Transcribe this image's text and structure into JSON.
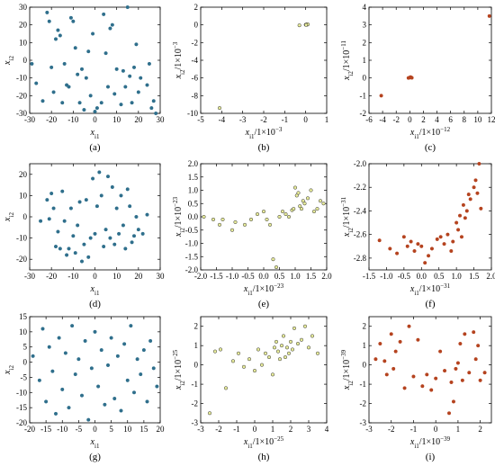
{
  "colors": {
    "blue_marker": "#2f6f8c",
    "yellow_marker": "#e8ec9a",
    "red_marker": "#b5431f",
    "axis": "#000000"
  },
  "chart_data": [
    {
      "id": "a",
      "caption": "(a)",
      "type": "scatter",
      "xlabel": "x_i1",
      "ylabel": "x_i2",
      "xlim": [
        -30,
        30
      ],
      "ylim": [
        -30,
        30
      ],
      "xticks": [
        "-30",
        "-20",
        "-10",
        "0",
        "10",
        "20",
        "30"
      ],
      "yticks": [
        "-30",
        "-20",
        "-10",
        "0",
        "10",
        "20",
        "30"
      ],
      "marker": "blue",
      "points": [
        [
          -29,
          -2
        ],
        [
          -27,
          -13
        ],
        [
          -24,
          -23
        ],
        [
          -22,
          27
        ],
        [
          -21,
          22
        ],
        [
          -20,
          -4
        ],
        [
          -19,
          -18
        ],
        [
          -18,
          12
        ],
        [
          -17,
          17
        ],
        [
          -16,
          14
        ],
        [
          -15,
          -24
        ],
        [
          -14,
          -2
        ],
        [
          -13,
          -14
        ],
        [
          -12,
          -15
        ],
        [
          -11,
          24
        ],
        [
          -10,
          22
        ],
        [
          -9,
          7
        ],
        [
          -8,
          -8
        ],
        [
          -7,
          -24
        ],
        [
          -6,
          -5
        ],
        [
          -5,
          -28
        ],
        [
          -4,
          -10
        ],
        [
          -3,
          5
        ],
        [
          -2,
          -20
        ],
        [
          -1,
          15
        ],
        [
          0,
          -29
        ],
        [
          1,
          -27
        ],
        [
          3,
          -24
        ],
        [
          4,
          26
        ],
        [
          5,
          4
        ],
        [
          6,
          -15
        ],
        [
          7,
          18
        ],
        [
          8,
          20
        ],
        [
          9,
          -19
        ],
        [
          10,
          -5
        ],
        [
          12,
          -25
        ],
        [
          13,
          -6
        ],
        [
          14,
          -15
        ],
        [
          15,
          30
        ],
        [
          16,
          -9
        ],
        [
          17,
          -24
        ],
        [
          18,
          -4
        ],
        [
          19,
          9
        ],
        [
          20,
          -18
        ],
        [
          21,
          -10
        ],
        [
          24,
          -14
        ],
        [
          25,
          -2
        ],
        [
          26,
          -27
        ],
        [
          27,
          -23
        ],
        [
          28,
          -30
        ]
      ]
    },
    {
      "id": "b",
      "caption": "(b)",
      "type": "scatter",
      "xlabel": "x_i1/1×10^-3",
      "ylabel": "x_i2/1×10^-3",
      "xlim": [
        -5,
        1
      ],
      "ylim": [
        -10,
        2
      ],
      "xticks": [
        "-5",
        "-4",
        "-3",
        "-2",
        "-1",
        "0",
        "1"
      ],
      "yticks": [
        "-10",
        "-8",
        "-6",
        "-4",
        "-2",
        "0",
        "2"
      ],
      "marker": "yellow",
      "points": [
        [
          -4.1,
          -9.4
        ],
        [
          -0.3,
          -0.05
        ],
        [
          0.0,
          0.02
        ],
        [
          0.03,
          0.04
        ],
        [
          0.06,
          0.05
        ],
        [
          0.08,
          0.03
        ],
        [
          0.1,
          0.06
        ],
        [
          0.02,
          0.0
        ]
      ]
    },
    {
      "id": "c",
      "caption": "(c)",
      "type": "scatter",
      "xlabel": "x_i1/1×10^-12",
      "ylabel": "x_i2/1×10^-11",
      "xlim": [
        -6,
        12
      ],
      "ylim": [
        -2,
        4
      ],
      "xticks": [
        "-6",
        "-4",
        "-2",
        "0",
        "2",
        "4",
        "6",
        "8",
        "10",
        "12"
      ],
      "yticks": [
        "-2",
        "-1",
        "0",
        "1",
        "2",
        "3",
        "4"
      ],
      "marker": "red",
      "points": [
        [
          -4.2,
          -1.0
        ],
        [
          -0.2,
          0.0
        ],
        [
          0.0,
          0.02
        ],
        [
          0.1,
          0.05
        ],
        [
          0.2,
          0.03
        ],
        [
          0.3,
          0.01
        ],
        [
          11.7,
          3.5
        ]
      ]
    },
    {
      "id": "d",
      "caption": "(d)",
      "type": "scatter",
      "xlabel": "x_i1",
      "ylabel": "x_i2",
      "xlim": [
        -30,
        30
      ],
      "ylim": [
        -25,
        25
      ],
      "xticks": [
        "-30",
        "-20",
        "-10",
        "0",
        "10",
        "20",
        "30"
      ],
      "yticks": [
        "-20",
        "-10",
        "0",
        "10",
        "20"
      ],
      "marker": "blue",
      "points": [
        [
          -25,
          -2
        ],
        [
          -22,
          8
        ],
        [
          -21,
          -1
        ],
        [
          -20,
          11
        ],
        [
          -19,
          4
        ],
        [
          -18,
          -14
        ],
        [
          -17,
          -7
        ],
        [
          -16,
          -15
        ],
        [
          -15,
          12
        ],
        [
          -14,
          -2
        ],
        [
          -13,
          -18
        ],
        [
          -12,
          -15
        ],
        [
          -11,
          4
        ],
        [
          -10,
          -9
        ],
        [
          -9,
          -17
        ],
        [
          -8,
          -4
        ],
        [
          -7,
          7
        ],
        [
          -6,
          -21
        ],
        [
          -5,
          -13
        ],
        [
          -4,
          8
        ],
        [
          -3,
          -19
        ],
        [
          -2,
          -10
        ],
        [
          -1,
          18
        ],
        [
          0,
          -8
        ],
        [
          1,
          5
        ],
        [
          2,
          21
        ],
        [
          3,
          10
        ],
        [
          4,
          -14
        ],
        [
          5,
          -6
        ],
        [
          6,
          19
        ],
        [
          7,
          -10
        ],
        [
          8,
          14
        ],
        [
          9,
          -13
        ],
        [
          10,
          4
        ],
        [
          11,
          -8
        ],
        [
          12,
          10
        ],
        [
          13,
          -4
        ],
        [
          14,
          -15
        ],
        [
          15,
          13
        ],
        [
          16,
          5
        ],
        [
          17,
          -12
        ],
        [
          18,
          -9
        ],
        [
          19,
          0
        ],
        [
          20,
          -6
        ],
        [
          22,
          -8
        ],
        [
          24,
          1
        ]
      ]
    },
    {
      "id": "e",
      "caption": "(e)",
      "type": "scatter",
      "xlabel": "x_i1/1×10^-23",
      "ylabel": "x_i2/1×10^-23",
      "xlim": [
        -2.0,
        2.0
      ],
      "ylim": [
        -2.0,
        2.0
      ],
      "xticks": [
        "-2.0",
        "-1.5",
        "-1.0",
        "-0.5",
        "0.0",
        "0.5",
        "1.0",
        "1.5",
        "2.0"
      ],
      "yticks": [
        "-2.0",
        "-1.5",
        "-1.0",
        "-0.5",
        "0.0",
        "0.5",
        "1.0",
        "1.5",
        "2.0"
      ],
      "marker": "yellow",
      "points": [
        [
          -1.9,
          0.0
        ],
        [
          -1.6,
          -0.1
        ],
        [
          -1.4,
          -0.3
        ],
        [
          -1.3,
          -0.1
        ],
        [
          -1.0,
          -0.5
        ],
        [
          -0.9,
          -0.2
        ],
        [
          -0.6,
          -0.3
        ],
        [
          -0.4,
          -0.1
        ],
        [
          -0.2,
          0.1
        ],
        [
          0.0,
          0.2
        ],
        [
          0.1,
          -0.1
        ],
        [
          0.2,
          -0.3
        ],
        [
          0.3,
          -1.6
        ],
        [
          0.4,
          -1.9
        ],
        [
          0.5,
          0.0
        ],
        [
          0.6,
          0.2
        ],
        [
          0.7,
          0.1
        ],
        [
          0.8,
          0.0
        ],
        [
          0.9,
          0.25
        ],
        [
          0.95,
          0.3
        ],
        [
          1.0,
          1.1
        ],
        [
          1.05,
          0.8
        ],
        [
          1.1,
          0.9
        ],
        [
          1.15,
          0.4
        ],
        [
          1.2,
          0.3
        ],
        [
          1.25,
          0.6
        ],
        [
          1.3,
          0.5
        ],
        [
          1.4,
          0.7
        ],
        [
          1.5,
          1.0
        ],
        [
          1.6,
          0.2
        ],
        [
          1.7,
          0.3
        ],
        [
          1.8,
          0.6
        ],
        [
          1.9,
          0.5
        ]
      ]
    },
    {
      "id": "f",
      "caption": "(f)",
      "type": "scatter",
      "xlabel": "x_i1/1×10^-31",
      "ylabel": "x_i2/1×10^-31",
      "xlim": [
        -1.5,
        2.0
      ],
      "ylim": [
        -2.9,
        -2.0
      ],
      "xticks": [
        "-1.5",
        "-1.0",
        "-0.5",
        "0.0",
        "0.5",
        "1.0",
        "1.5",
        "2.0"
      ],
      "yticks": [
        "-2.8",
        "-2.6",
        "-2.4",
        "-2.2",
        "-2.0"
      ],
      "marker": "red",
      "points": [
        [
          -1.2,
          -2.65
        ],
        [
          -0.9,
          -2.72
        ],
        [
          -0.7,
          -2.76
        ],
        [
          -0.5,
          -2.62
        ],
        [
          -0.4,
          -2.7
        ],
        [
          -0.3,
          -2.66
        ],
        [
          -0.2,
          -2.74
        ],
        [
          -0.1,
          -2.68
        ],
        [
          0.0,
          -2.7
        ],
        [
          0.1,
          -2.84
        ],
        [
          0.2,
          -2.78
        ],
        [
          0.3,
          -2.72
        ],
        [
          0.45,
          -2.64
        ],
        [
          0.55,
          -2.62
        ],
        [
          0.65,
          -2.68
        ],
        [
          0.75,
          -2.6
        ],
        [
          0.85,
          -2.74
        ],
        [
          0.9,
          -2.66
        ],
        [
          1.0,
          -2.5
        ],
        [
          1.05,
          -2.56
        ],
        [
          1.1,
          -2.44
        ],
        [
          1.15,
          -2.62
        ],
        [
          1.2,
          -2.35
        ],
        [
          1.25,
          -2.46
        ],
        [
          1.3,
          -2.4
        ],
        [
          1.35,
          -2.26
        ],
        [
          1.4,
          -2.3
        ],
        [
          1.5,
          -2.2
        ],
        [
          1.55,
          -2.14
        ],
        [
          1.6,
          -2.25
        ],
        [
          1.65,
          -2.0
        ],
        [
          1.7,
          -2.38
        ]
      ]
    },
    {
      "id": "g",
      "caption": "(g)",
      "type": "scatter",
      "xlabel": "x_i1",
      "ylabel": "x_i2",
      "xlim": [
        -20,
        20
      ],
      "ylim": [
        -20,
        15
      ],
      "xticks": [
        "-20",
        "-15",
        "-10",
        "-5",
        "0",
        "5",
        "10",
        "15",
        "20"
      ],
      "yticks": [
        "-20",
        "-15",
        "-10",
        "-5",
        "0",
        "5",
        "10",
        "15"
      ],
      "marker": "blue",
      "points": [
        [
          -19,
          2
        ],
        [
          -17,
          -6
        ],
        [
          -16,
          11
        ],
        [
          -15,
          -13
        ],
        [
          -14,
          5
        ],
        [
          -13,
          -3
        ],
        [
          -12,
          -17
        ],
        [
          -11,
          8
        ],
        [
          -10,
          -9
        ],
        [
          -9,
          3
        ],
        [
          -8,
          -15
        ],
        [
          -7,
          12
        ],
        [
          -6,
          -4
        ],
        [
          -5,
          1
        ],
        [
          -4,
          -11
        ],
        [
          -3,
          7
        ],
        [
          -2,
          -19
        ],
        [
          -1,
          -2
        ],
        [
          0,
          10
        ],
        [
          1,
          -8
        ],
        [
          2,
          4
        ],
        [
          3,
          -14
        ],
        [
          4,
          -1
        ],
        [
          5,
          8
        ],
        [
          6,
          -12
        ],
        [
          7,
          2
        ],
        [
          8,
          -16
        ],
        [
          9,
          6
        ],
        [
          10,
          -6
        ],
        [
          11,
          12
        ],
        [
          12,
          -10
        ],
        [
          13,
          1
        ],
        [
          14,
          -4
        ],
        [
          15,
          4
        ],
        [
          16,
          -13
        ],
        [
          17,
          7
        ],
        [
          18,
          -2
        ],
        [
          19,
          -8
        ]
      ]
    },
    {
      "id": "h",
      "caption": "(h)",
      "type": "scatter",
      "xlabel": "x_i1/1×10^-25",
      "ylabel": "x_i2/1×10^-25",
      "xlim": [
        -3,
        4
      ],
      "ylim": [
        -3,
        2.5
      ],
      "xticks": [
        "-3",
        "-2",
        "-1",
        "0",
        "1",
        "2",
        "3",
        "4"
      ],
      "yticks": [
        "-3",
        "-2",
        "-1",
        "0",
        "1",
        "2"
      ],
      "marker": "yellow",
      "points": [
        [
          -2.5,
          -2.5
        ],
        [
          -2.2,
          0.7
        ],
        [
          -1.9,
          0.8
        ],
        [
          -1.6,
          -1.2
        ],
        [
          -1.2,
          0.2
        ],
        [
          -0.9,
          0.6
        ],
        [
          -0.6,
          -0.1
        ],
        [
          -0.3,
          0.3
        ],
        [
          0.0,
          -0.3
        ],
        [
          0.2,
          0.8
        ],
        [
          0.4,
          0.0
        ],
        [
          0.6,
          0.6
        ],
        [
          0.8,
          0.4
        ],
        [
          1.0,
          -0.5
        ],
        [
          1.1,
          0.9
        ],
        [
          1.2,
          1.2
        ],
        [
          1.3,
          0.7
        ],
        [
          1.4,
          0.3
        ],
        [
          1.5,
          1.0
        ],
        [
          1.6,
          1.5
        ],
        [
          1.7,
          0.4
        ],
        [
          1.8,
          0.9
        ],
        [
          1.9,
          0.6
        ],
        [
          2.0,
          1.2
        ],
        [
          2.1,
          0.8
        ],
        [
          2.2,
          1.9
        ],
        [
          2.4,
          1.1
        ],
        [
          2.6,
          1.3
        ],
        [
          2.8,
          2.0
        ],
        [
          3.0,
          0.9
        ],
        [
          3.2,
          1.5
        ],
        [
          3.5,
          0.6
        ]
      ]
    },
    {
      "id": "i",
      "caption": "(i)",
      "type": "scatter",
      "xlabel": "x_i1/1×10^-39",
      "ylabel": "x_i2/1×10^-39",
      "xlim": [
        -3,
        2.5
      ],
      "ylim": [
        -3,
        2.5
      ],
      "xticks": [
        "-3",
        "-2",
        "-1",
        "0",
        "1",
        "2"
      ],
      "yticks": [
        "-3",
        "-2",
        "-1",
        "0",
        "1",
        "2"
      ],
      "marker": "red",
      "points": [
        [
          -2.7,
          0.3
        ],
        [
          -2.5,
          1.1
        ],
        [
          -2.3,
          0.2
        ],
        [
          -2.2,
          -0.5
        ],
        [
          -2.0,
          1.6
        ],
        [
          -1.9,
          -0.2
        ],
        [
          -1.8,
          0.7
        ],
        [
          -1.6,
          1.2
        ],
        [
          -1.4,
          -1.2
        ],
        [
          -1.2,
          2.0
        ],
        [
          -1.0,
          -0.6
        ],
        [
          -0.8,
          1.3
        ],
        [
          -0.6,
          -1.1
        ],
        [
          -0.4,
          -0.5
        ],
        [
          -0.2,
          -1.3
        ],
        [
          0.0,
          -0.7
        ],
        [
          0.2,
          0.7
        ],
        [
          0.4,
          -0.3
        ],
        [
          0.6,
          -2.5
        ],
        [
          0.7,
          -0.9
        ],
        [
          0.8,
          -1.9
        ],
        [
          0.9,
          -0.2
        ],
        [
          1.0,
          0.1
        ],
        [
          1.1,
          1.1
        ],
        [
          1.2,
          -0.8
        ],
        [
          1.3,
          1.6
        ],
        [
          1.5,
          -0.4
        ],
        [
          1.7,
          1.7
        ],
        [
          1.8,
          0.3
        ],
        [
          1.9,
          1.0
        ],
        [
          2.0,
          -0.8
        ],
        [
          2.2,
          -0.4
        ]
      ]
    }
  ]
}
